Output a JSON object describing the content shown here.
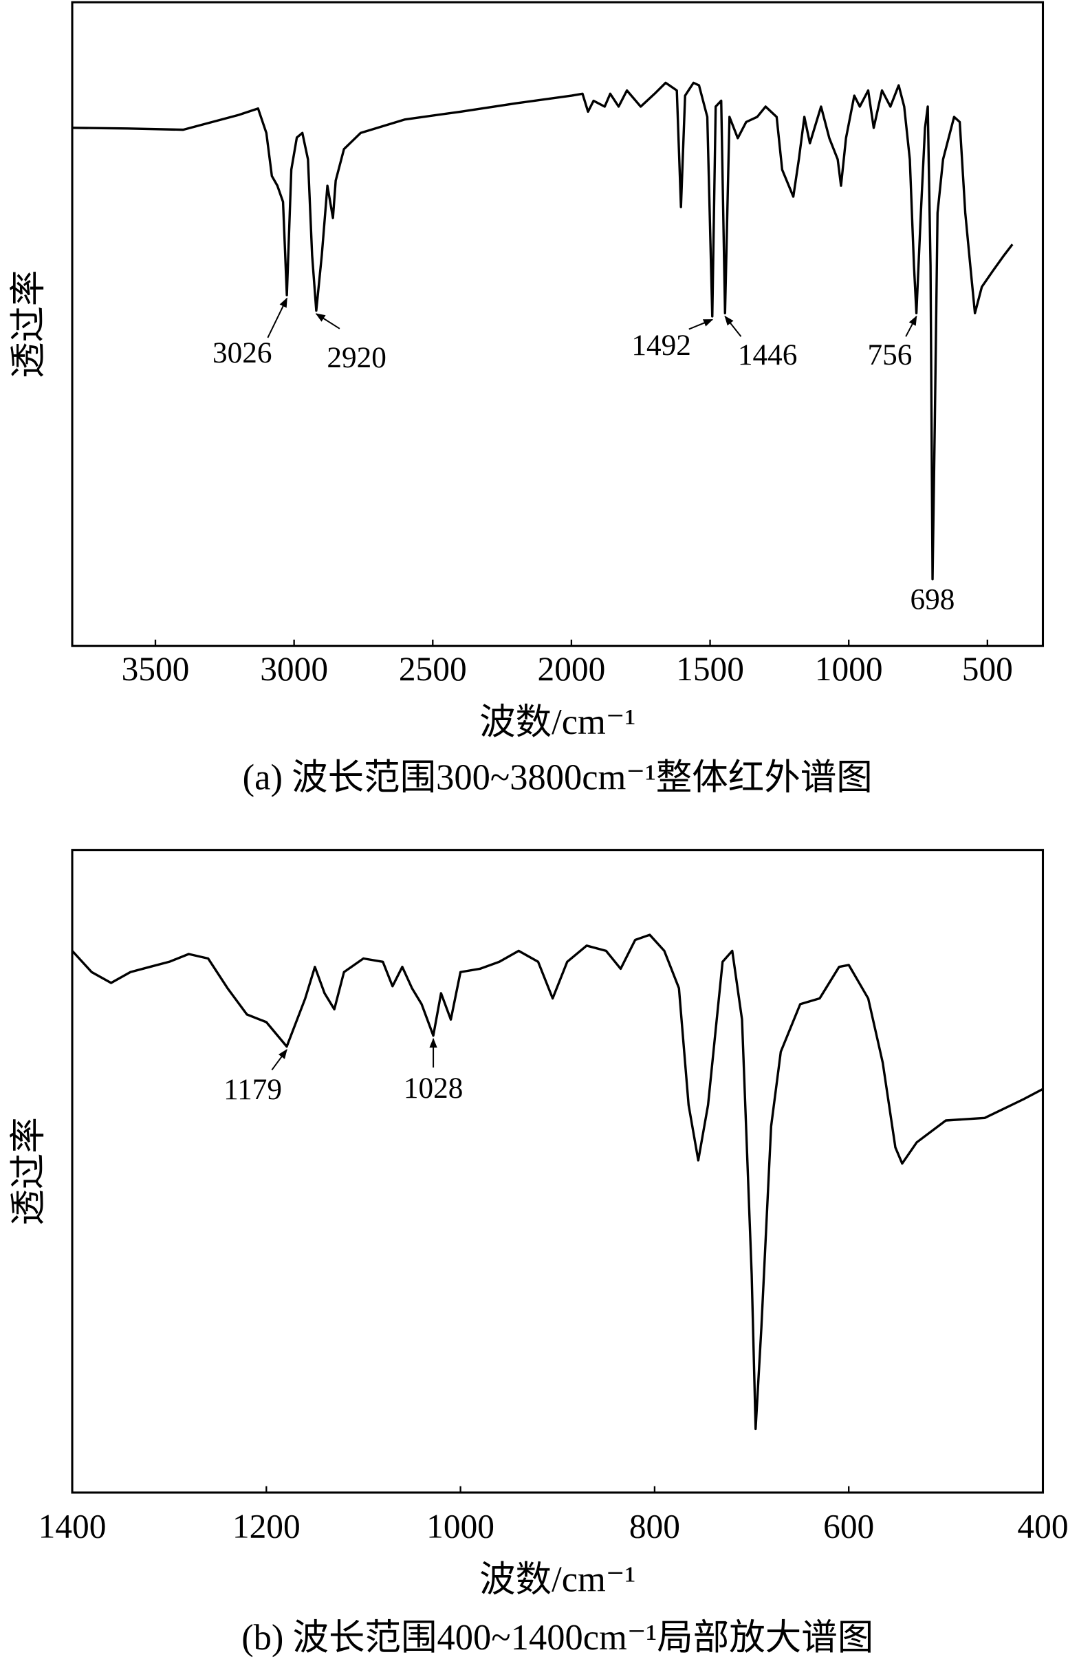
{
  "chart_data": [
    {
      "type": "line",
      "title": "(a) 波长范围300~3800cm⁻¹整体红外谱图",
      "xlabel": "波数/cm⁻¹",
      "ylabel": "透过率",
      "color": "#000000",
      "xlim": [
        3800,
        300
      ],
      "xticks": [
        3500,
        3000,
        2500,
        2000,
        1500,
        1000,
        500
      ],
      "ylim": [
        0,
        100
      ],
      "x": [
        3800,
        3600,
        3400,
        3200,
        3130,
        3100,
        3080,
        3060,
        3040,
        3026,
        3010,
        2990,
        2970,
        2950,
        2935,
        2920,
        2900,
        2880,
        2860,
        2850,
        2820,
        2760,
        2600,
        2400,
        2200,
        2000,
        1960,
        1940,
        1920,
        1880,
        1860,
        1830,
        1800,
        1750,
        1700,
        1660,
        1620,
        1605,
        1590,
        1560,
        1540,
        1510,
        1492,
        1480,
        1460,
        1446,
        1430,
        1400,
        1370,
        1330,
        1300,
        1260,
        1240,
        1200,
        1180,
        1160,
        1140,
        1100,
        1070,
        1040,
        1028,
        1010,
        980,
        960,
        930,
        910,
        880,
        850,
        820,
        800,
        780,
        765,
        756,
        740,
        725,
        715,
        705,
        698,
        690,
        680,
        660,
        620,
        600,
        580,
        560,
        545,
        520,
        480,
        440,
        410
      ],
      "values": [
        80.5,
        80.4,
        80.2,
        82.5,
        83.5,
        79.7,
        73,
        71.5,
        69,
        54.5,
        74,
        79,
        79.7,
        75.6,
        60.7,
        52.1,
        60.7,
        71.5,
        66.5,
        72.3,
        77.2,
        79.7,
        81.8,
        83,
        84.3,
        85.5,
        85.8,
        83,
        84.7,
        83.8,
        85.8,
        83.8,
        86.3,
        83.8,
        85.8,
        87.5,
        86.3,
        68.2,
        85.5,
        87.5,
        87.1,
        82.2,
        51.2,
        83.8,
        84.7,
        51.7,
        82.2,
        78.9,
        81.4,
        82.2,
        83.8,
        82.2,
        74,
        69.8,
        75.6,
        82.2,
        78.1,
        83.8,
        78.9,
        75.6,
        71.5,
        78.9,
        85.5,
        83.8,
        86.3,
        80.5,
        86.3,
        83.8,
        87.1,
        83.8,
        75.6,
        59.1,
        51.7,
        67.3,
        80.5,
        83.8,
        59.1,
        10.4,
        34.3,
        67.3,
        75.6,
        82.2,
        81.4,
        67.3,
        58.3,
        51.7,
        55.8,
        58.3,
        60.7,
        62.4
      ],
      "annotations": [
        {
          "x": 3026,
          "y": 54.5
        },
        {
          "x": 2920,
          "y": 52.1
        },
        {
          "x": 1492,
          "y": 51.2
        },
        {
          "x": 1446,
          "y": 51.7
        },
        {
          "x": 756,
          "y": 51.7
        },
        {
          "x": 698,
          "y": 10.4
        }
      ]
    },
    {
      "type": "line",
      "title": "(b) 波长范围400~1400cm⁻¹局部放大谱图",
      "xlabel": "波数/cm⁻¹",
      "ylabel": "透过率",
      "color": "#000000",
      "xlim": [
        1400,
        400
      ],
      "xticks": [
        1400,
        1200,
        1000,
        800,
        600,
        400
      ],
      "ylim": [
        0,
        100
      ],
      "x": [
        1400,
        1380,
        1360,
        1340,
        1320,
        1300,
        1280,
        1260,
        1240,
        1220,
        1200,
        1179,
        1160,
        1150,
        1140,
        1130,
        1120,
        1100,
        1080,
        1070,
        1060,
        1050,
        1040,
        1028,
        1020,
        1010,
        1000,
        980,
        960,
        940,
        920,
        905,
        890,
        870,
        850,
        835,
        820,
        805,
        790,
        775,
        765,
        755,
        745,
        730,
        720,
        710,
        700,
        696,
        690,
        680,
        670,
        650,
        630,
        610,
        600,
        580,
        565,
        552,
        545,
        530,
        500,
        460,
        420,
        400
      ],
      "values": [
        84.3,
        81,
        79.3,
        81,
        81.8,
        82.6,
        83.8,
        83.1,
        78.5,
        74.4,
        73.2,
        69.4,
        76.9,
        81.8,
        77.7,
        75.2,
        81,
        83.1,
        82.6,
        78.8,
        81.8,
        78.5,
        76,
        71.1,
        77.7,
        73.6,
        81,
        81.5,
        82.6,
        84.3,
        82.6,
        76.9,
        82.6,
        85.1,
        84.3,
        81.5,
        86,
        86.8,
        84.3,
        78.5,
        60.3,
        51.7,
        60.3,
        82.6,
        84.3,
        73.6,
        33.9,
        9.9,
        25.6,
        57,
        68.6,
        76,
        76.9,
        81.8,
        82.1,
        76.9,
        66.9,
        53.7,
        51.2,
        54.5,
        57.9,
        58.3,
        61.2,
        62.8
      ],
      "annotations": [
        {
          "x": 1179,
          "y": 69.4
        },
        {
          "x": 1028,
          "y": 71.1
        }
      ]
    }
  ]
}
